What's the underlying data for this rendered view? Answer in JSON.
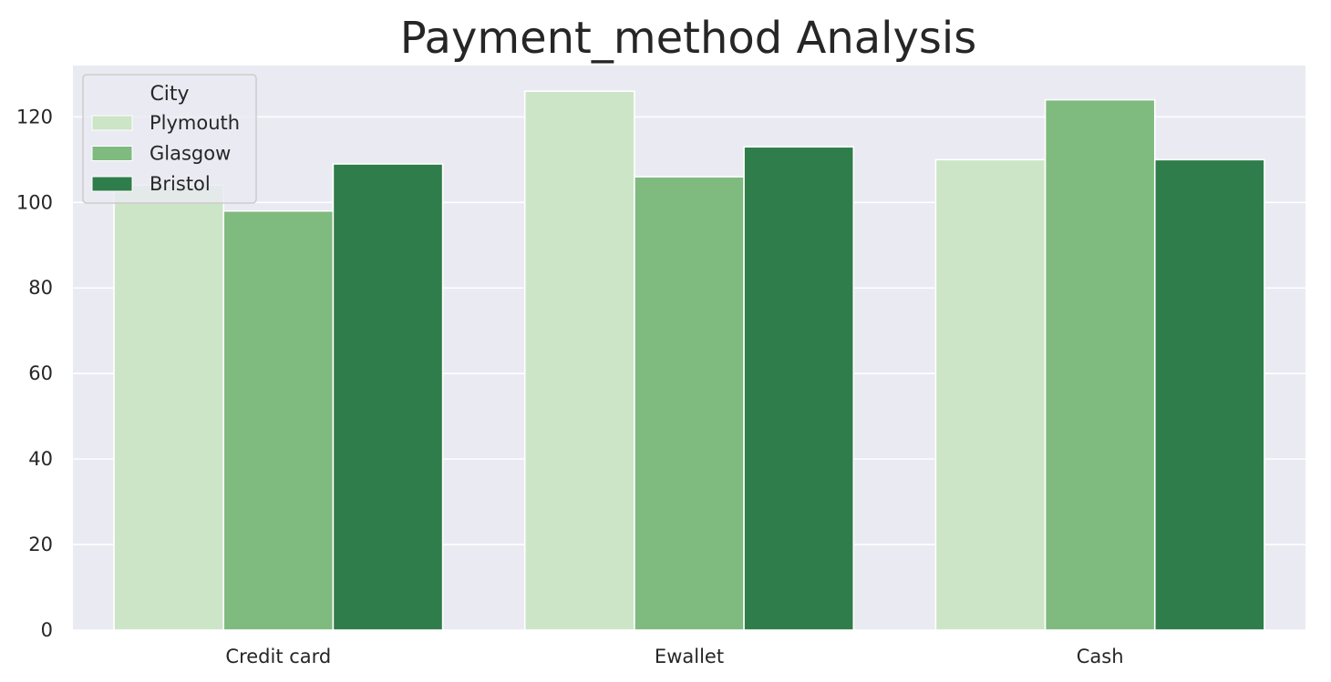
{
  "chart_data": {
    "type": "bar",
    "title": "Payment_method Analysis",
    "xlabel": "",
    "ylabel": "",
    "categories": [
      "Credit card",
      "Ewallet",
      "Cash"
    ],
    "series": [
      {
        "name": "Plymouth",
        "values": [
          104,
          126,
          110
        ],
        "color": "#cce5c7"
      },
      {
        "name": "Glasgow",
        "values": [
          98,
          106,
          124
        ],
        "color": "#7fba7f"
      },
      {
        "name": "Bristol",
        "values": [
          109,
          113,
          110
        ],
        "color": "#2f7d4a"
      }
    ],
    "ylim": [
      0,
      132
    ],
    "yticks": [
      0,
      20,
      40,
      60,
      80,
      100,
      120
    ],
    "grid": true,
    "legend": {
      "title": "City",
      "placement": "top-left"
    },
    "colors": {
      "background": "#eaeaf2",
      "grid": "#ffffff",
      "text": "#262626"
    }
  }
}
